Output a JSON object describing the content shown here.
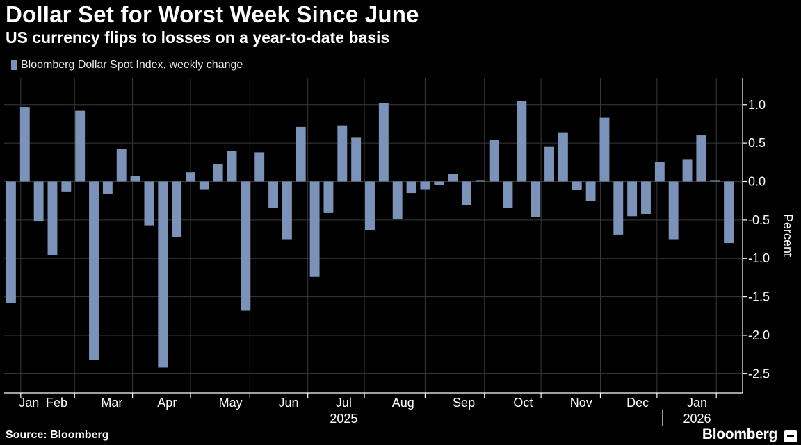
{
  "header": {
    "title": "Dollar Set for Worst Week Since June",
    "subtitle": "US currency flips to losses on a year-to-date basis"
  },
  "footer": {
    "source": "Source: Bloomberg",
    "brand": "Bloomberg"
  },
  "colors": {
    "bar": "#7b93b8",
    "grid": "#3a3a3a",
    "background": "#000000",
    "text": "#ffffff"
  },
  "chart_data": {
    "type": "bar",
    "ylabel": "Percent",
    "ylim": [
      -2.75,
      1.35
    ],
    "yticks": [
      1.0,
      0.5,
      0.0,
      -0.5,
      -1.0,
      -1.5,
      -2.0,
      -2.5
    ],
    "ytick_labels": [
      "1.0",
      "0.5",
      "0.0",
      "-0.5",
      "-1.0",
      "-1.5",
      "-2.0",
      "-2.5"
    ],
    "grid": true,
    "legend_position": "top-left",
    "series": [
      {
        "name": "Bloomberg Dollar Spot Index, weekly change",
        "values": [
          -1.58,
          0.97,
          -0.52,
          -0.96,
          -0.13,
          0.92,
          -2.32,
          -0.16,
          0.42,
          0.07,
          -0.57,
          -2.42,
          -0.72,
          0.12,
          -0.1,
          0.23,
          0.4,
          -1.68,
          0.38,
          -0.34,
          -0.75,
          0.71,
          -1.24,
          -0.41,
          0.73,
          0.57,
          -0.63,
          1.02,
          -0.49,
          -0.15,
          -0.1,
          -0.05,
          0.1,
          -0.31,
          0.01,
          0.54,
          -0.34,
          1.05,
          -0.46,
          0.45,
          0.64,
          -0.11,
          -0.25,
          0.83,
          -0.69,
          -0.45,
          -0.42,
          0.25,
          -0.75,
          0.29,
          0.6,
          0.01,
          -0.8
        ]
      }
    ],
    "x_month_labels": [
      {
        "label": "Jan",
        "week": 1.2
      },
      {
        "label": "Feb",
        "week": 3.2
      },
      {
        "label": "Mar",
        "week": 7.2
      },
      {
        "label": "Apr",
        "week": 11.2
      },
      {
        "label": "May",
        "week": 15.8
      },
      {
        "label": "Jun",
        "week": 20.0
      },
      {
        "label": "Jul",
        "week": 24.0
      },
      {
        "label": "Aug",
        "week": 28.3
      },
      {
        "label": "Sep",
        "week": 32.7
      },
      {
        "label": "Oct",
        "week": 37.0
      },
      {
        "label": "Nov",
        "week": 41.2
      },
      {
        "label": "Dec",
        "week": 45.3
      },
      {
        "label": "Jan",
        "week": 49.6
      }
    ],
    "x_year_labels": [
      {
        "label": "2025",
        "week": 24.0
      },
      {
        "label": "2026",
        "week": 49.6
      }
    ],
    "gridline_weeks": [
      1.2,
      5.1,
      9.3,
      13.5,
      17.8,
      22.0,
      26.1,
      30.5,
      34.8,
      38.9,
      43.2,
      47.3,
      51.6
    ]
  }
}
